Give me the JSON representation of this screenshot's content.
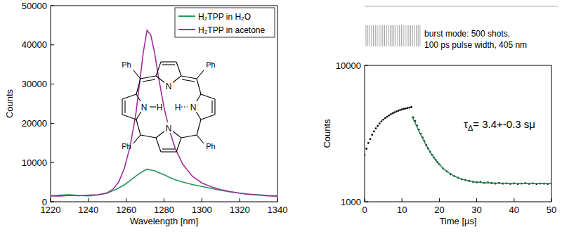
{
  "chart_data": [
    {
      "type": "line",
      "x_label": "Wavelength [nm]",
      "y_label": "Counts",
      "xlim": [
        1220,
        1340
      ],
      "xticks": [
        1220,
        1240,
        1260,
        1280,
        1300,
        1320,
        1340
      ],
      "ylim": [
        0,
        50000
      ],
      "yticks": [
        0,
        10000,
        20000,
        30000,
        40000,
        50000
      ],
      "legend": "upper right",
      "series": [
        {
          "name": "H₂TPP in H₂O",
          "color": "#23985a",
          "x": [
            1220,
            1225,
            1230,
            1235,
            1240,
            1245,
            1250,
            1253,
            1256,
            1259,
            1262,
            1265,
            1267,
            1269,
            1271,
            1273,
            1275,
            1277,
            1280,
            1283,
            1286,
            1290,
            1295,
            1300,
            1305,
            1310,
            1315,
            1320,
            1325,
            1330,
            1335,
            1340
          ],
          "values": [
            1500,
            1700,
            1800,
            1600,
            1500,
            1700,
            2200,
            2800,
            3500,
            4300,
            5400,
            6500,
            7200,
            7800,
            8300,
            8100,
            7900,
            7500,
            6900,
            6200,
            5600,
            5000,
            4400,
            3900,
            3400,
            2900,
            2500,
            2200,
            1900,
            1800,
            1600,
            1500
          ]
        },
        {
          "name": "H₂TPP in acetone",
          "color": "#a0309a",
          "x": [
            1220,
            1225,
            1230,
            1235,
            1240,
            1245,
            1250,
            1253,
            1256,
            1259,
            1262,
            1265,
            1267,
            1269,
            1271,
            1273,
            1275,
            1277,
            1280,
            1283,
            1286,
            1290,
            1295,
            1300,
            1305,
            1310,
            1315,
            1320,
            1325,
            1330,
            1335,
            1340
          ],
          "values": [
            1500,
            1450,
            1600,
            1550,
            1700,
            1800,
            2300,
            3200,
            5000,
            8500,
            14000,
            22000,
            30000,
            38000,
            43700,
            42500,
            38000,
            32000,
            24000,
            18000,
            13500,
            9500,
            6500,
            4800,
            3800,
            3100,
            2600,
            2200,
            1900,
            1700,
            1500,
            1400
          ]
        }
      ],
      "structure": {
        "phenyl": "Ph",
        "nitrogen": "N",
        "hydrogen": "H"
      }
    },
    {
      "type": "scatter",
      "x_label": "Time [µs]",
      "y_label": "Counts",
      "log": "y",
      "xlim": [
        0,
        50
      ],
      "xticks": [
        0,
        10,
        20,
        30,
        40,
        50
      ],
      "ylim": [
        1000,
        10000
      ],
      "yticks": [
        1000,
        10000
      ],
      "series": [
        {
          "type": "scatter",
          "color": "#000000",
          "marker": "dot",
          "x": [
            0,
            0.5,
            1,
            1.5,
            2,
            2.5,
            3,
            3.5,
            4,
            4.5,
            5,
            5.5,
            6,
            6.5,
            7,
            7.5,
            8,
            8.5,
            9,
            9.5,
            10,
            10.5,
            11,
            11.5,
            12,
            12.5,
            13,
            13.5,
            14,
            14.5,
            15,
            15.5,
            16,
            16.5,
            17,
            17.5,
            18,
            18.5,
            19,
            19.5,
            20,
            21,
            22,
            23,
            24,
            25,
            26,
            27,
            28,
            29,
            30,
            31,
            32,
            33,
            34,
            35,
            36,
            37,
            38,
            39,
            40,
            41,
            42,
            43,
            44,
            45,
            46,
            47,
            48,
            49,
            50
          ],
          "values": [
            2200,
            2450,
            2700,
            2880,
            3100,
            3280,
            3450,
            3600,
            3750,
            3880,
            4000,
            4100,
            4200,
            4290,
            4380,
            4450,
            4520,
            4590,
            4650,
            4700,
            4750,
            4800,
            4830,
            4870,
            4900,
            4950,
            4150,
            3900,
            3620,
            3380,
            3150,
            2960,
            2780,
            2600,
            2460,
            2330,
            2210,
            2110,
            2030,
            1950,
            1880,
            1750,
            1670,
            1590,
            1540,
            1500,
            1460,
            1440,
            1420,
            1400,
            1390,
            1395,
            1375,
            1385,
            1370,
            1360,
            1372,
            1358,
            1365,
            1355,
            1362,
            1350,
            1360,
            1368,
            1355,
            1362,
            1350,
            1360,
            1358,
            1352,
            1360
          ]
        },
        {
          "type": "line",
          "color": "#2e8b57",
          "line_style": "solid",
          "x": [
            12.7,
            13,
            14,
            15,
            16,
            17,
            18,
            19,
            20,
            21,
            22,
            23,
            24,
            25,
            26,
            27,
            28,
            29,
            30,
            32,
            34,
            36,
            38,
            40,
            44,
            50
          ],
          "values": [
            4250,
            4050,
            3550,
            3100,
            2750,
            2450,
            2220,
            2030,
            1880,
            1760,
            1670,
            1600,
            1540,
            1500,
            1465,
            1440,
            1420,
            1405,
            1395,
            1380,
            1372,
            1367,
            1364,
            1362,
            1360,
            1360
          ]
        }
      ],
      "annotation": {
        "symbol": "τ",
        "subscript": "Δ",
        "text": "= 3.4+-0.3 sμ"
      },
      "inset_text": [
        "burst mode: 500 shots,",
        "100 ps pulse width, 405 nm"
      ]
    }
  ]
}
